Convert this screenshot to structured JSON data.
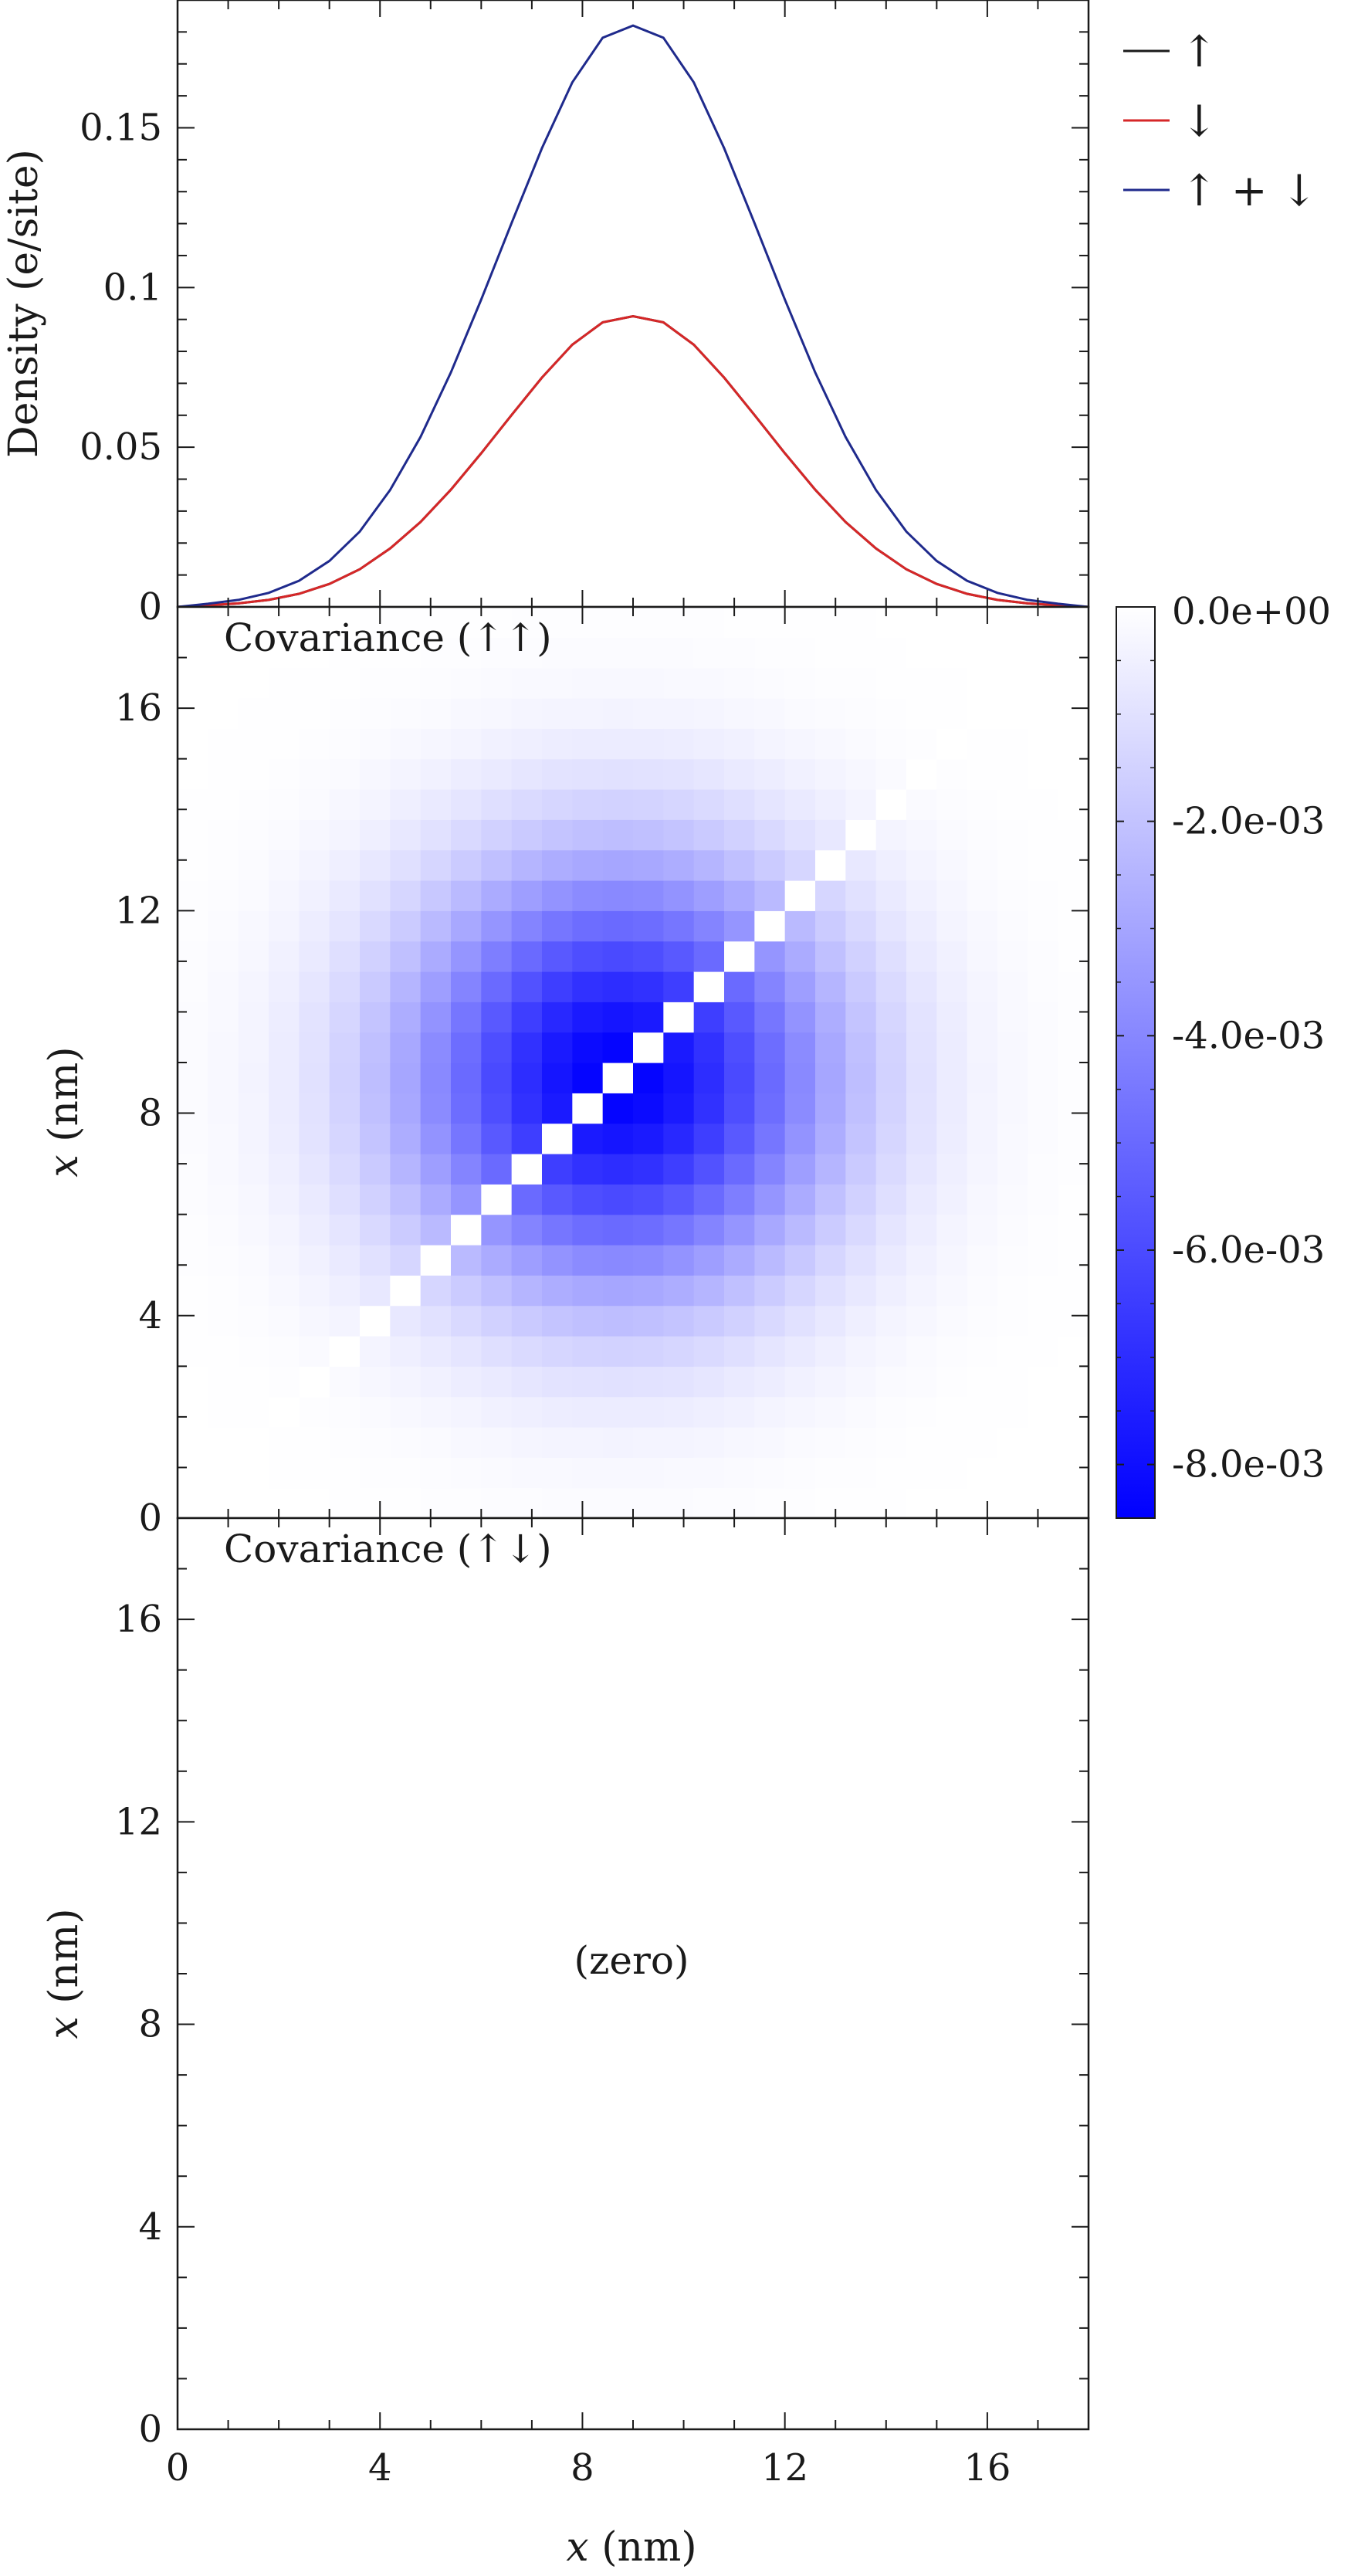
{
  "chart_data": [
    {
      "type": "line",
      "title": "",
      "xlabel": "",
      "ylabel": "Density (e/site)",
      "xlim": [
        0,
        18
      ],
      "ylim": [
        0,
        0.19
      ],
      "x_ticks": [
        0,
        4,
        8,
        12,
        16
      ],
      "y_ticks": [
        {
          "v": 0,
          "label": "0"
        },
        {
          "v": 0.05,
          "label": "0.05"
        },
        {
          "v": 0.1,
          "label": "0.1"
        },
        {
          "v": 0.15,
          "label": "0.15"
        }
      ],
      "legend_position": "right of plot, top",
      "x": [
        0,
        0.6,
        1.2,
        1.8,
        2.4,
        3.0,
        3.6,
        4.2,
        4.8,
        5.4,
        6.0,
        6.6,
        7.2,
        7.8,
        8.4,
        9.0,
        9.6,
        10.2,
        10.8,
        11.4,
        12.0,
        12.6,
        13.2,
        13.8,
        14.4,
        15.0,
        15.6,
        16.2,
        16.8,
        17.4,
        18.0
      ],
      "series": [
        {
          "name": "↑",
          "color": "#1a1a1a",
          "values": [
            0,
            0.0005,
            0.0011,
            0.0022,
            0.0041,
            0.0072,
            0.0118,
            0.0183,
            0.0266,
            0.0367,
            0.0481,
            0.0601,
            0.0718,
            0.0821,
            0.0891,
            0.091,
            0.0891,
            0.0821,
            0.0718,
            0.0601,
            0.0481,
            0.0367,
            0.0266,
            0.0183,
            0.0118,
            0.0072,
            0.0041,
            0.0022,
            0.0011,
            0.0005,
            0
          ]
        },
        {
          "name": "↓",
          "color": "#d62728",
          "values": [
            0,
            0.0005,
            0.0011,
            0.0022,
            0.0041,
            0.0072,
            0.0118,
            0.0183,
            0.0266,
            0.0367,
            0.0481,
            0.0601,
            0.0718,
            0.0821,
            0.0891,
            0.091,
            0.0891,
            0.0821,
            0.0718,
            0.0601,
            0.0481,
            0.0367,
            0.0266,
            0.0183,
            0.0118,
            0.0072,
            0.0041,
            0.0022,
            0.0011,
            0.0005,
            0
          ]
        },
        {
          "name": "↑ + ↓",
          "color": "#1f2a8c",
          "values": [
            0,
            0.001,
            0.0022,
            0.0044,
            0.0082,
            0.0144,
            0.0236,
            0.0366,
            0.0532,
            0.0734,
            0.0962,
            0.1202,
            0.1436,
            0.1642,
            0.1782,
            0.182,
            0.1782,
            0.1642,
            0.1436,
            0.1202,
            0.0962,
            0.0734,
            0.0532,
            0.0366,
            0.0236,
            0.0144,
            0.0082,
            0.0044,
            0.0022,
            0.001,
            0
          ]
        }
      ]
    },
    {
      "type": "heatmap",
      "annotation": "Covariance (↑↑)",
      "xlabel": "",
      "ylabel": "x (nm)",
      "xlim": [
        0,
        18
      ],
      "ylim": [
        0,
        18
      ],
      "y_ticks": [
        0,
        4,
        8,
        12,
        16
      ],
      "grid_size": 30,
      "cell_size_nm": 0.6,
      "peak_value": -0.0085,
      "center_nm": 8.7,
      "width_nm": 2.9,
      "diagonal_value": 0.0,
      "colorbar": {
        "range": [
          -0.0085,
          0.0
        ],
        "min_color": "#0000ff",
        "max_color": "#ffffff",
        "ticks": [
          {
            "v": 0.0,
            "label": "0.0e+00"
          },
          {
            "v": -0.002,
            "label": "-2.0e-03"
          },
          {
            "v": -0.004,
            "label": "-4.0e-03"
          },
          {
            "v": -0.006,
            "label": "-6.0e-03"
          },
          {
            "v": -0.008,
            "label": "-8.0e-03"
          }
        ]
      }
    },
    {
      "type": "heatmap",
      "annotation": "Covariance (↑↓)",
      "note": "(zero)",
      "xlabel": "x (nm)",
      "ylabel": "x (nm)",
      "xlim": [
        0,
        18
      ],
      "ylim": [
        0,
        18
      ],
      "x_ticks": [
        0,
        4,
        8,
        12,
        16
      ],
      "y_ticks": [
        0,
        4,
        8,
        12,
        16
      ]
    }
  ]
}
